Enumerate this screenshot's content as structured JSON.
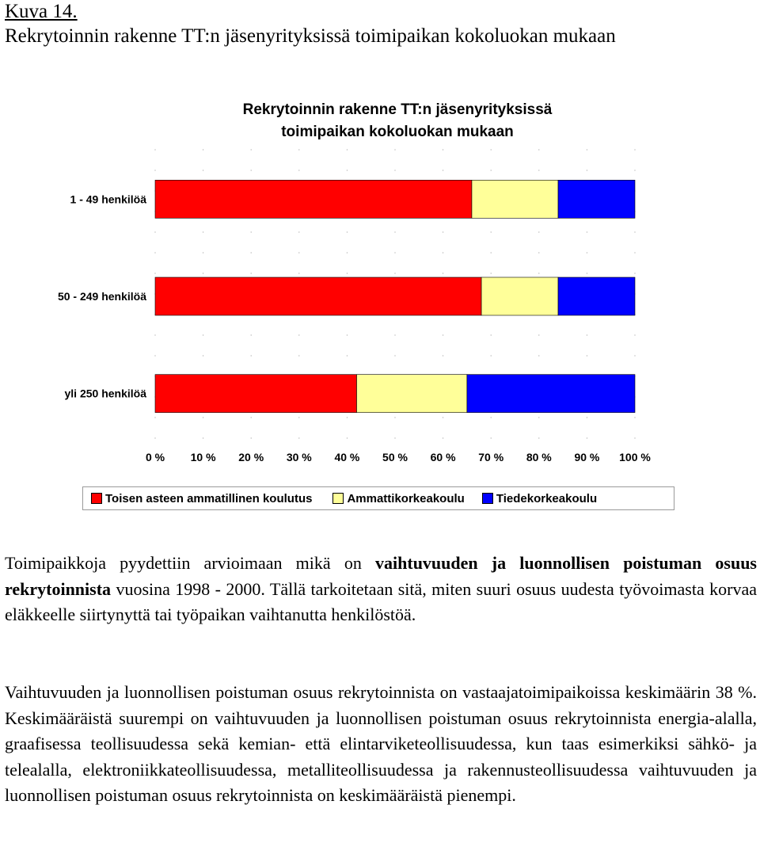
{
  "heading": {
    "label": "Kuva 14.",
    "title": "Rekrytoinnin rakenne TT:n jäsenyrityksissä toimipaikan kokoluokan mukaan"
  },
  "chart_data": {
    "type": "bar",
    "orientation": "horizontal-stacked-100",
    "title_lines": [
      "Rekrytoinnin rakenne TT:n jäsenyrityksissä",
      "toimipaikan kokoluokan mukaan"
    ],
    "categories": [
      "1 - 49 henkilöä",
      "50 - 249 henkilöä",
      "yli 250 henkilöä"
    ],
    "series": [
      {
        "name": "Toisen asteen ammatillinen koulutus",
        "color": "#ff0000",
        "values": [
          66,
          68,
          42
        ]
      },
      {
        "name": "Ammattikorkeakoulu",
        "color": "#ffff99",
        "values": [
          18,
          16,
          23
        ]
      },
      {
        "name": "Tiedekorkeakoulu",
        "color": "#0000ff",
        "values": [
          16,
          16,
          35
        ]
      }
    ],
    "xticks": [
      "0 %",
      "10 %",
      "20 %",
      "30 %",
      "40 %",
      "50 %",
      "60 %",
      "70 %",
      "80 %",
      "90 %",
      "100 %"
    ],
    "xlim": [
      0,
      100
    ],
    "grid": true,
    "legend_position": "bottom"
  },
  "paragraph1": {
    "part1": "Toimipaikkoja pyydettiin arvioimaan mikä on ",
    "bold": "vaihtuvuuden ja luonnollisen poistuman osuus rekrytoinnista",
    "part2": " vuosina 1998 - 2000. Tällä tarkoitetaan sitä, miten suuri osuus uudesta työvoimasta korvaa eläkkeelle siirtynyttä tai työpaikan vaihtanutta henkilöstöä."
  },
  "paragraph2": "Vaihtuvuuden ja luonnollisen poistuman osuus rekrytoinnista on vastaajatoimipaikoissa keskimäärin 38 %. Keskimääräistä suurempi on vaihtuvuuden ja luonnollisen poistuman osuus rekrytoinnista energia-alalla, graafisessa teollisuudessa sekä kemian- että elintarviketeollisuudessa, kun taas esimerkiksi sähkö- ja telealalla, elektroniikkateollisuudessa, metalliteollisuudessa ja rakennusteollisuudessa vaihtuvuuden ja luonnollisen poistuman osuus rekrytoinnista on keskimääräistä pienempi."
}
